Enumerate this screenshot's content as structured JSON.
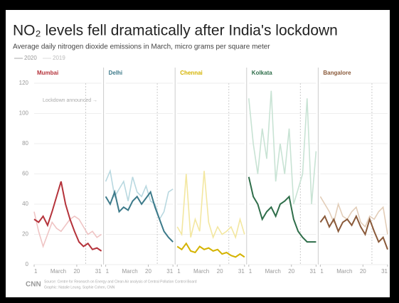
{
  "title": "NO₂ levels fell dramatically after India's lockdown",
  "subtitle": "Average daily nitrogen dioxide emissions in March, micro grams per square meter",
  "annotation": {
    "text": "Lockdown announced →",
    "x": 24
  },
  "source": "Source: Centre for Research on Energy and Clean Air analysis of Central Pollution Control Board",
  "credit": "Graphic: Natalie Leung, Sophie Cohen, CNN",
  "logo": "CNN",
  "chart_data": [
    {
      "type": "line",
      "title": "Mumbai",
      "x": [
        1,
        3,
        5,
        7,
        9,
        11,
        13,
        15,
        17,
        19,
        21,
        23,
        25,
        27,
        29,
        31
      ],
      "xlim": [
        1,
        31
      ],
      "xticks": [
        1,
        20,
        31
      ],
      "xlabel": "March",
      "ylim": [
        0,
        120
      ],
      "yticks": [
        0,
        20,
        40,
        60,
        80,
        100,
        120
      ],
      "series": [
        {
          "name": "2020",
          "color": "#b5333b",
          "values": [
            30,
            28,
            32,
            26,
            35,
            45,
            55,
            40,
            30,
            22,
            15,
            12,
            14,
            10,
            11,
            9
          ]
        },
        {
          "name": "2019",
          "color": "#efc4c4",
          "values": [
            35,
            22,
            12,
            20,
            28,
            24,
            22,
            26,
            30,
            32,
            30,
            25,
            20,
            22,
            18,
            20
          ]
        }
      ]
    },
    {
      "type": "line",
      "title": "Delhi",
      "x": [
        1,
        3,
        5,
        7,
        9,
        11,
        13,
        15,
        17,
        19,
        21,
        23,
        25,
        27,
        29,
        31
      ],
      "xlim": [
        1,
        31
      ],
      "xticks": [
        1,
        20,
        31
      ],
      "xlabel": "March",
      "ylim": [
        0,
        120
      ],
      "yticks": [
        0,
        20,
        40,
        60,
        80,
        100,
        120
      ],
      "series": [
        {
          "name": "2020",
          "color": "#3d7a8a",
          "values": [
            45,
            40,
            48,
            35,
            38,
            36,
            42,
            45,
            40,
            44,
            48,
            38,
            30,
            22,
            18,
            15
          ]
        },
        {
          "name": "2019",
          "color": "#b8d8e0",
          "values": [
            55,
            62,
            45,
            50,
            55,
            42,
            58,
            48,
            45,
            52,
            42,
            40,
            30,
            35,
            48,
            50
          ]
        }
      ]
    },
    {
      "type": "line",
      "title": "Chennai",
      "x": [
        1,
        3,
        5,
        7,
        9,
        11,
        13,
        15,
        17,
        19,
        21,
        23,
        25,
        27,
        29,
        31
      ],
      "xlim": [
        1,
        31
      ],
      "xticks": [
        1,
        20,
        31
      ],
      "xlabel": "March",
      "ylim": [
        0,
        120
      ],
      "yticks": [
        0,
        20,
        40,
        60,
        80,
        100,
        120
      ],
      "series": [
        {
          "name": "2020",
          "color": "#d4b300",
          "values": [
            12,
            10,
            14,
            9,
            8,
            12,
            10,
            11,
            9,
            10,
            7,
            8,
            6,
            5,
            7,
            5
          ]
        },
        {
          "name": "2019",
          "color": "#f3e7a0",
          "values": [
            25,
            20,
            60,
            18,
            30,
            22,
            62,
            28,
            18,
            25,
            20,
            22,
            25,
            18,
            30,
            20
          ]
        }
      ]
    },
    {
      "type": "line",
      "title": "Kolkata",
      "x": [
        1,
        3,
        5,
        7,
        9,
        11,
        13,
        15,
        17,
        19,
        21,
        23,
        25,
        27,
        29,
        31
      ],
      "xlim": [
        1,
        31
      ],
      "xticks": [
        1,
        20,
        31
      ],
      "xlabel": "March",
      "ylim": [
        0,
        120
      ],
      "yticks": [
        0,
        20,
        40,
        60,
        80,
        100,
        120
      ],
      "series": [
        {
          "name": "2020",
          "color": "#2f6e4a",
          "values": [
            58,
            45,
            40,
            30,
            35,
            38,
            32,
            40,
            42,
            45,
            30,
            22,
            18,
            15,
            15,
            15
          ]
        },
        {
          "name": "2019",
          "color": "#c8e3d4",
          "values": [
            110,
            80,
            60,
            90,
            70,
            115,
            55,
            80,
            60,
            90,
            40,
            50,
            60,
            110,
            40,
            75
          ]
        }
      ]
    },
    {
      "type": "line",
      "title": "Bangalore",
      "x": [
        1,
        3,
        5,
        7,
        9,
        11,
        13,
        15,
        17,
        19,
        21,
        23,
        25,
        27,
        29,
        31
      ],
      "xlim": [
        1,
        31
      ],
      "xticks": [
        1,
        20,
        31
      ],
      "xlabel": "March",
      "ylim": [
        0,
        120
      ],
      "yticks": [
        0,
        20,
        40,
        60,
        80,
        100,
        120
      ],
      "series": [
        {
          "name": "2020",
          "color": "#8a5a3a",
          "values": [
            28,
            32,
            25,
            30,
            22,
            28,
            30,
            26,
            32,
            25,
            20,
            30,
            22,
            15,
            18,
            10
          ]
        },
        {
          "name": "2019",
          "color": "#e2cdb8",
          "values": [
            45,
            40,
            35,
            28,
            40,
            32,
            30,
            35,
            38,
            28,
            25,
            32,
            30,
            35,
            38,
            20
          ]
        }
      ]
    }
  ]
}
